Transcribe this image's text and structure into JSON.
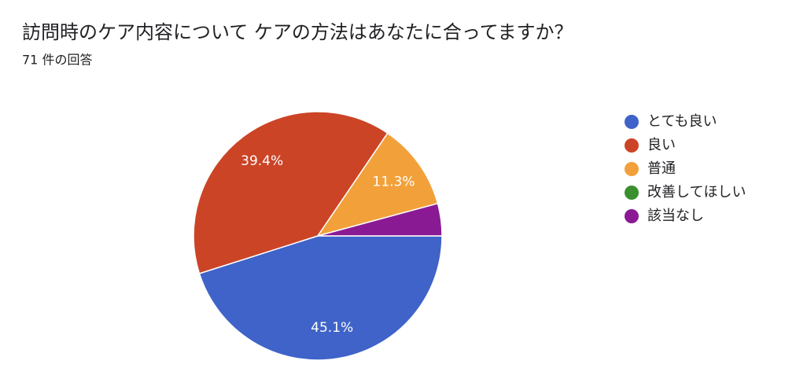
{
  "chart_data": {
    "type": "pie",
    "title": "訪問時のケア内容について ケアの方法はあなたに合ってますか？",
    "subtitle": "71 件の回答",
    "categories": [
      "とても良い",
      "良い",
      "普通",
      "改善してほしい",
      "該当なし"
    ],
    "values": [
      45.1,
      39.4,
      11.3,
      0,
      4.2
    ],
    "value_labels": [
      "45.1%",
      "39.4%",
      "11.3%",
      null,
      null
    ],
    "colors": [
      "#3f63c8",
      "#cc4426",
      "#f2a13a",
      "#3a8f2e",
      "#8a1a94"
    ],
    "legend": "right"
  }
}
